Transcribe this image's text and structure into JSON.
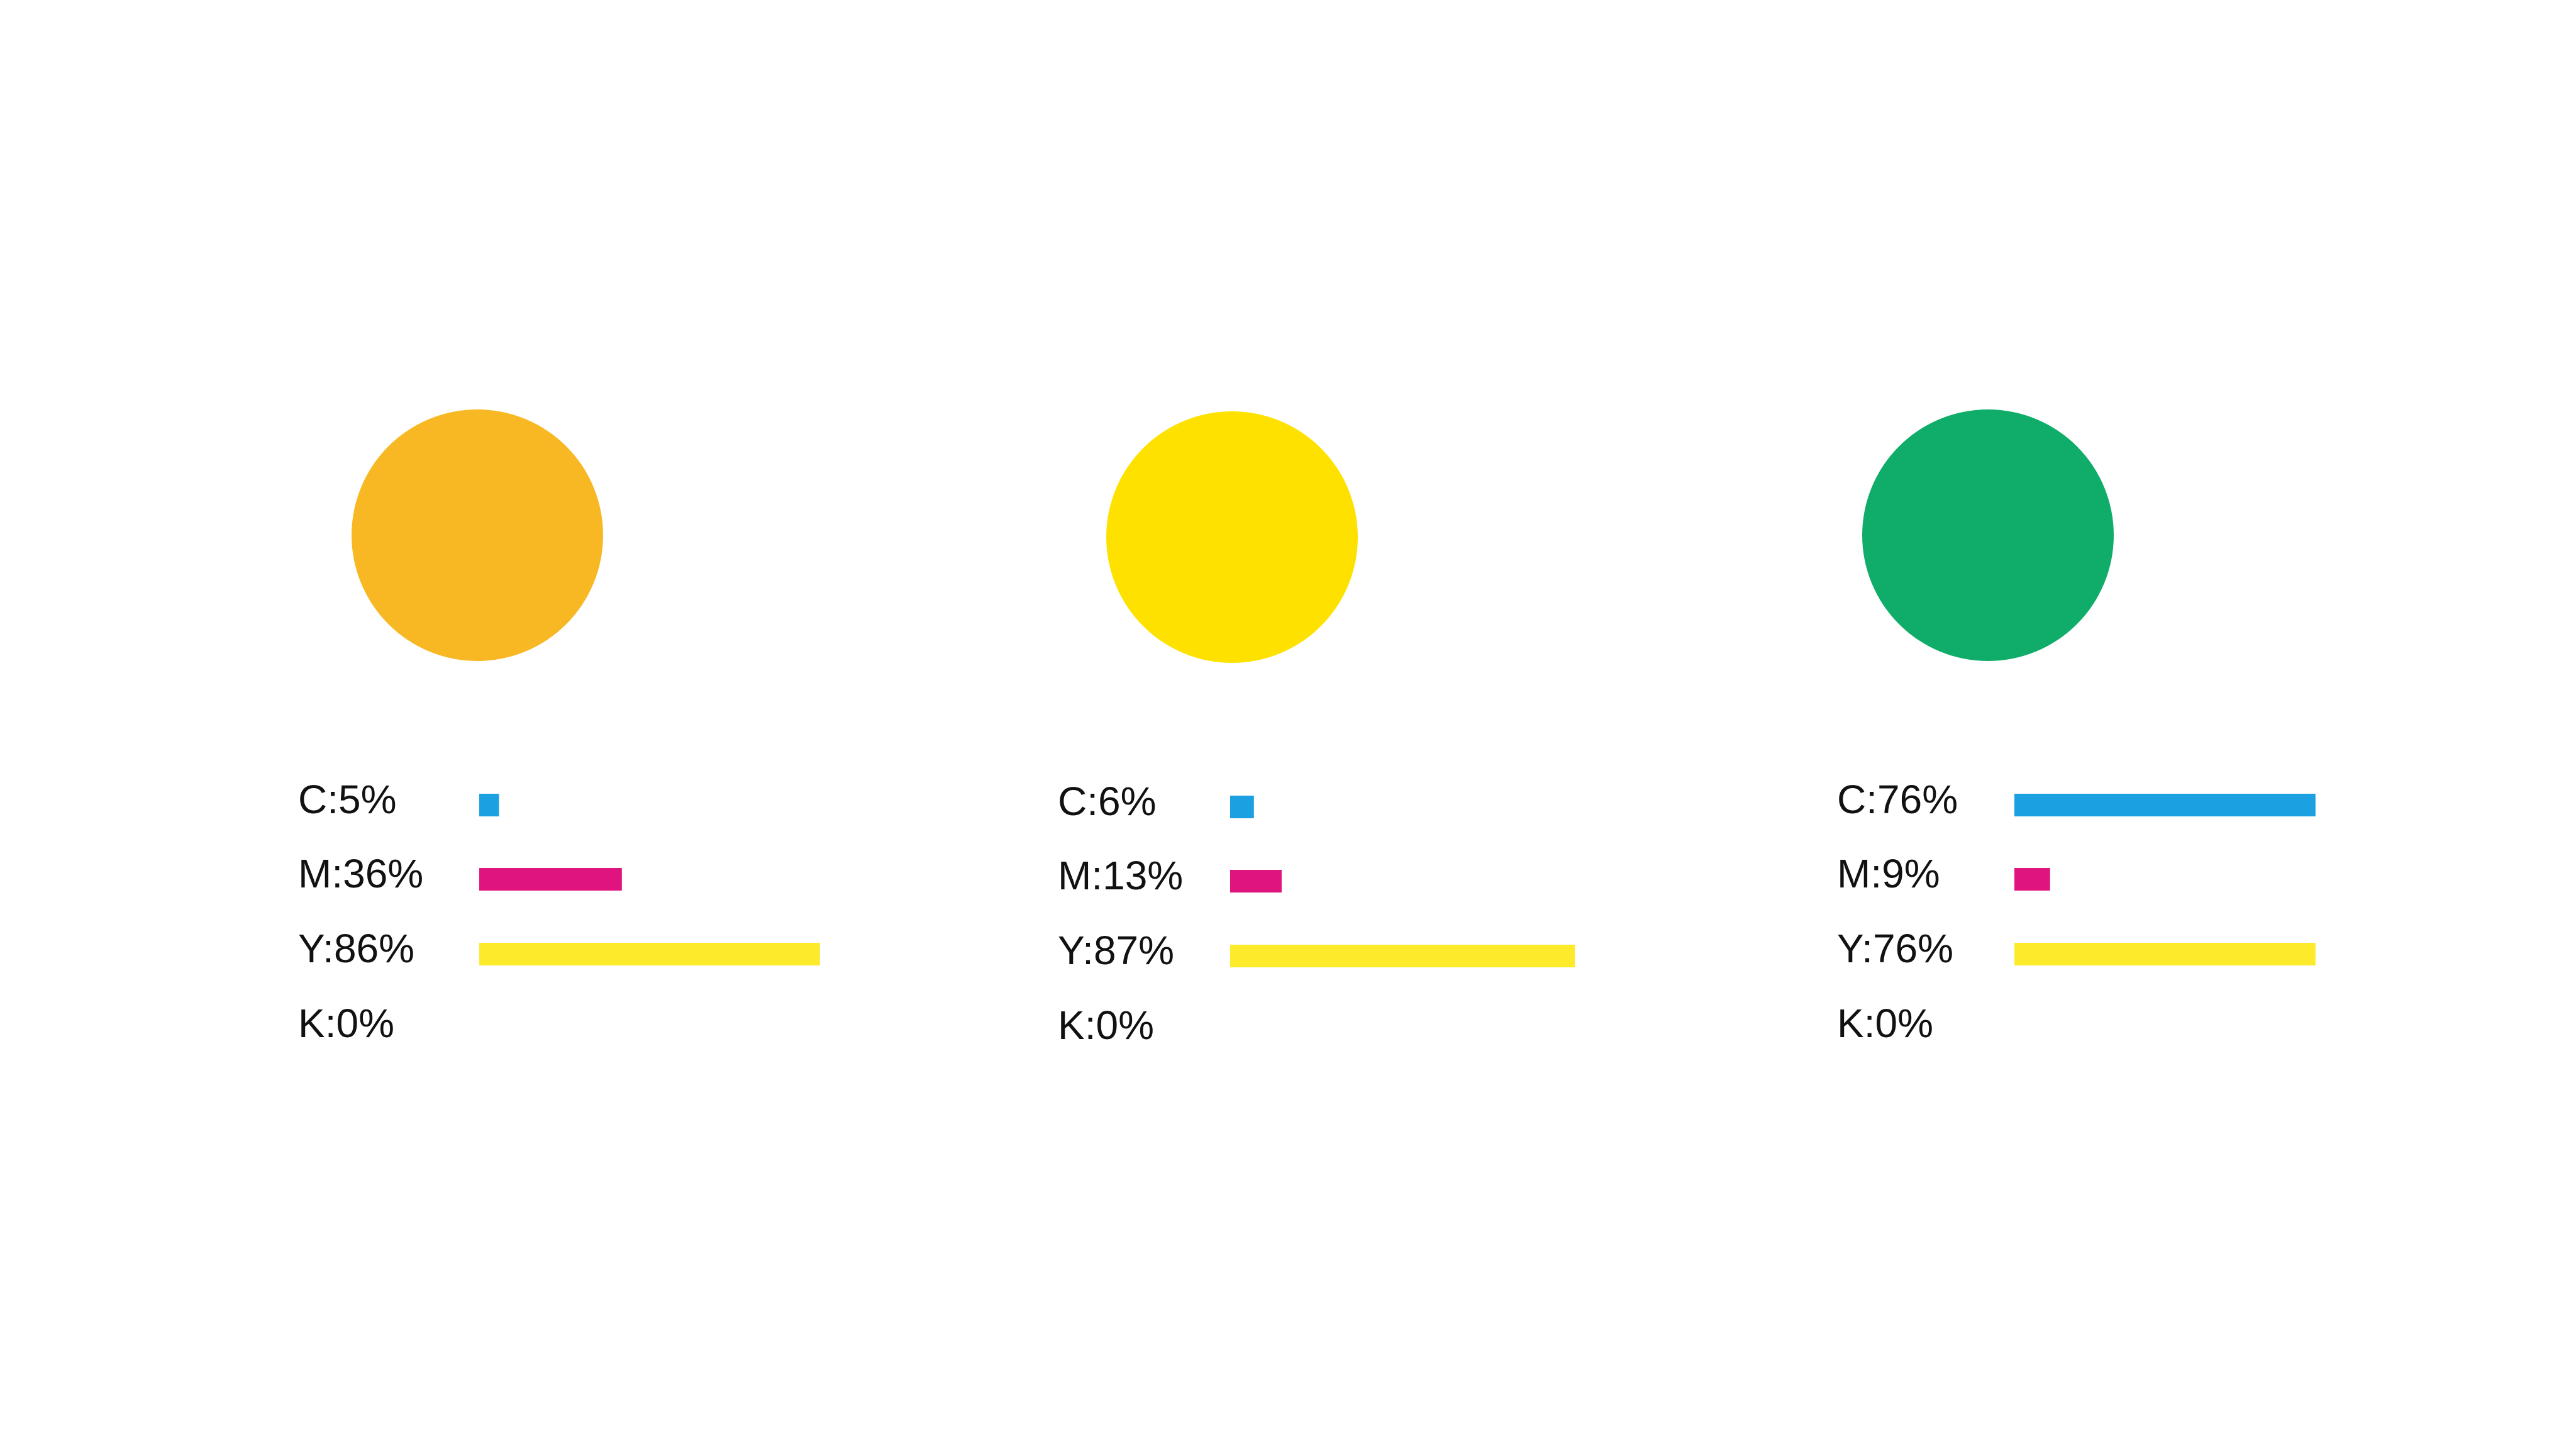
{
  "swatches": [
    {
      "color": "#F8B824",
      "channels": [
        {
          "label": "C:5%",
          "value": 5,
          "color": "#1BA1E2"
        },
        {
          "label": "M:36%",
          "value": 36,
          "color": "#E0147E"
        },
        {
          "label": "Y:86%",
          "value": 86,
          "color": "#FCEA2B"
        },
        {
          "label": "K:0%",
          "value": 0,
          "color": "#111111"
        }
      ]
    },
    {
      "color": "#FFE100",
      "channels": [
        {
          "label": "C:6%",
          "value": 6,
          "color": "#1BA1E2"
        },
        {
          "label": "M:13%",
          "value": 13,
          "color": "#E0147E"
        },
        {
          "label": "Y:87%",
          "value": 87,
          "color": "#FCEA2B"
        },
        {
          "label": "K:0%",
          "value": 0,
          "color": "#111111"
        }
      ]
    },
    {
      "color": "#0FAD69",
      "channels": [
        {
          "label": "C:76%",
          "value": 76,
          "color": "#1BA1E2"
        },
        {
          "label": "M:9%",
          "value": 9,
          "color": "#E0147E"
        },
        {
          "label": "Y:76%",
          "value": 76,
          "color": "#FCEA2B"
        },
        {
          "label": "K:0%",
          "value": 0,
          "color": "#111111"
        }
      ]
    }
  ]
}
